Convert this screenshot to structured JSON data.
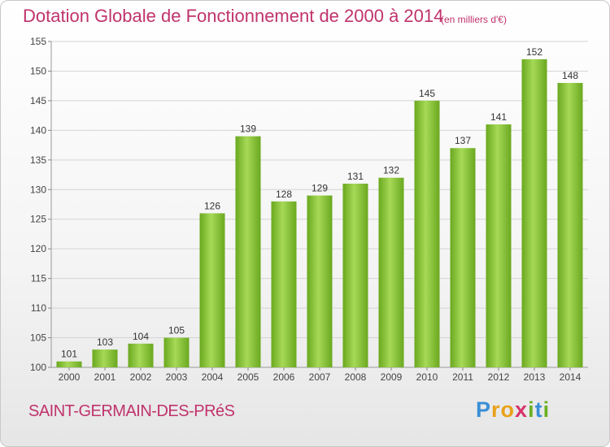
{
  "title": "Dotation Globale de Fonctionnement de 2000 à 2014",
  "subtitle": "(en milliers d'€)",
  "commune": "SAINT-GERMAIN-DES-PRéS",
  "logo": {
    "letters": [
      {
        "char": "P",
        "color": "#3a8fd6"
      },
      {
        "char": "r",
        "color": "#e8a21a"
      },
      {
        "char": "o",
        "color": "#e8a21a"
      },
      {
        "char": "x",
        "color": "#d6336b"
      },
      {
        "char": "i",
        "color": "#6ab023"
      },
      {
        "char": "t",
        "color": "#3a8fd6"
      },
      {
        "char": "i",
        "color": "#6ab023"
      }
    ]
  },
  "colors": {
    "bar": "#7dbb2a",
    "bar_light": "#a6d957",
    "bar_dark": "#5f9a1a",
    "accent": "#c0336c"
  },
  "chart_data": {
    "type": "bar",
    "categories": [
      "2000",
      "2001",
      "2002",
      "2003",
      "2004",
      "2005",
      "2006",
      "2007",
      "2008",
      "2009",
      "2010",
      "2011",
      "2012",
      "2013",
      "2014"
    ],
    "values": [
      101,
      103,
      104,
      105,
      126,
      139,
      128,
      129,
      131,
      132,
      145,
      137,
      141,
      152,
      148
    ],
    "data_labels": [
      "101",
      "103",
      "104",
      "105",
      "126",
      "139",
      "128",
      "129",
      "131",
      "132",
      "145",
      "137",
      "141",
      "152",
      "148"
    ],
    "ylim": [
      100,
      155
    ],
    "yticks": [
      "100",
      "105",
      "110",
      "115",
      "120",
      "125",
      "130",
      "135",
      "140",
      "145",
      "150",
      "155"
    ],
    "grid": true
  }
}
